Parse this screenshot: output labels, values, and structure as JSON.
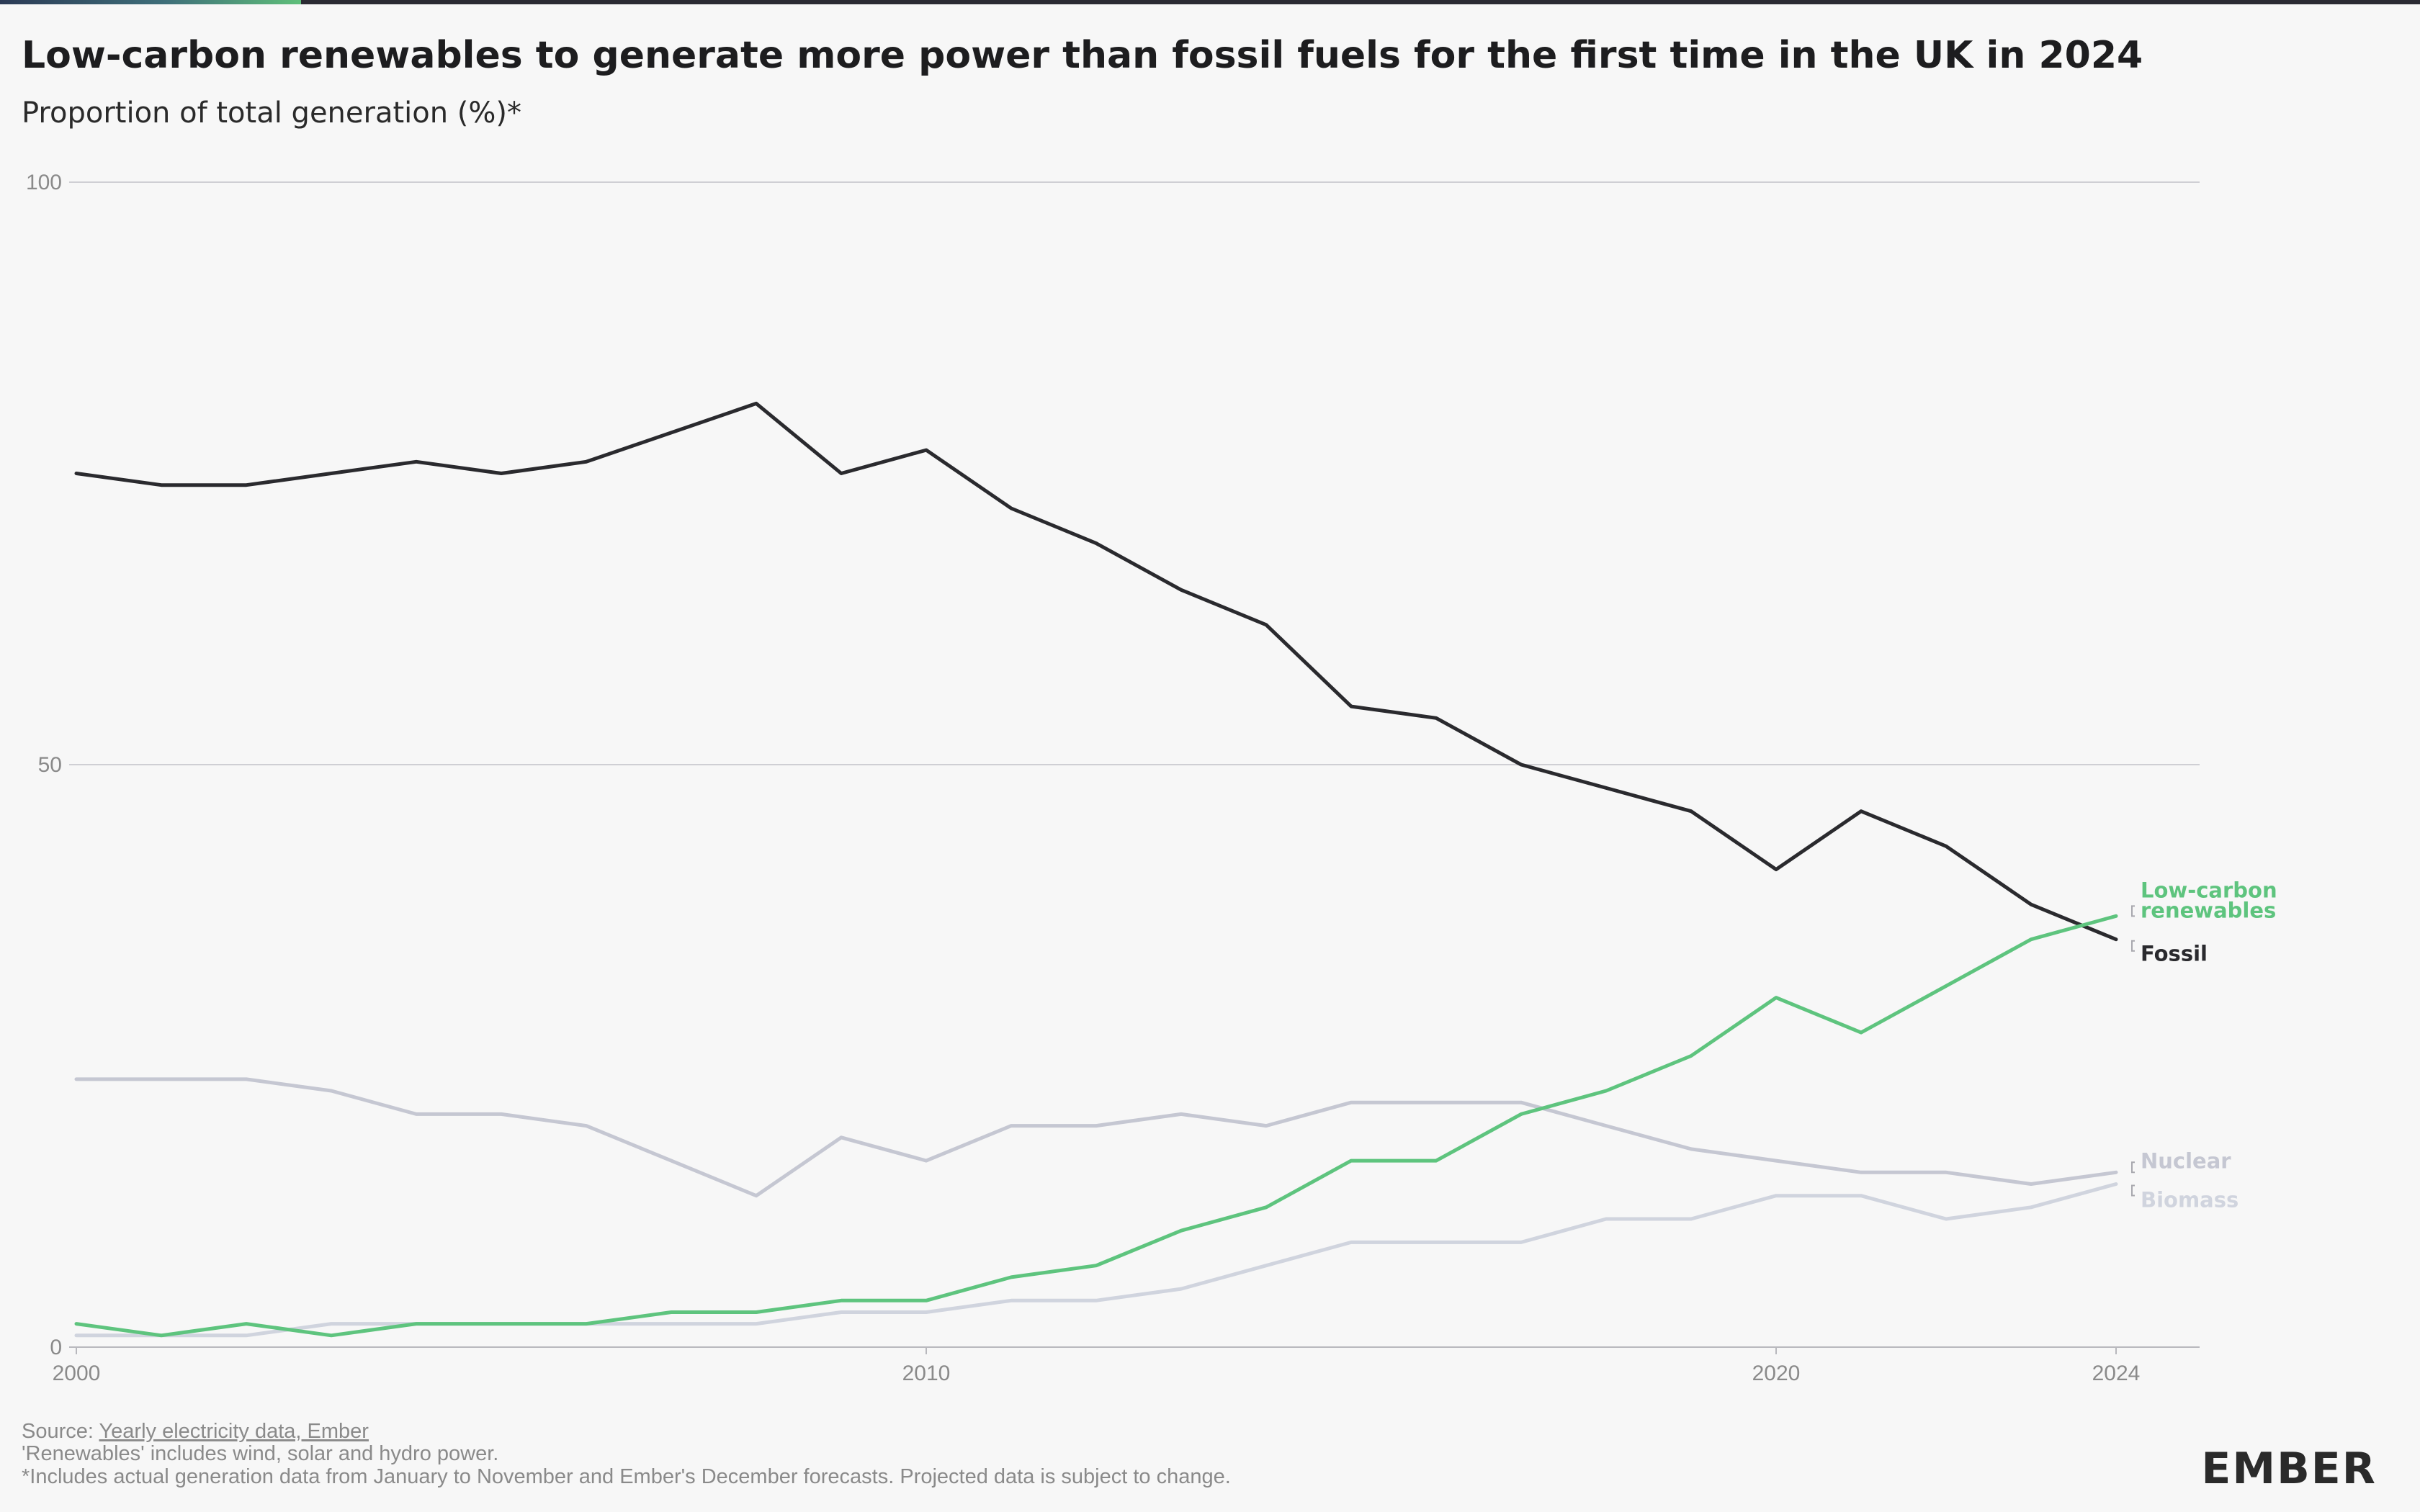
{
  "header": {
    "title": "Low-carbon renewables to generate more power than fossil fuels for the first time in the UK in 2024",
    "subtitle": "Proportion of total generation (%)*"
  },
  "footer": {
    "source_prefix": "Source: ",
    "source_link": "Yearly electricity data, Ember",
    "note1": "'Renewables' includes wind, solar and hydro power.",
    "note2": "*Includes actual generation data from January to November and Ember's December forecasts. Projected data is subject to change."
  },
  "logo": {
    "text": "EMBER"
  },
  "colors": {
    "fossil": "#2a2a2e",
    "renewables": "#5ec47e",
    "nuclear": "#c5c7d2",
    "biomass": "#d0d4de",
    "grid": "#cfcfd4",
    "axis": "#b8b8bd"
  },
  "chart_data": {
    "type": "line",
    "title": "Low-carbon renewables to generate more power than fossil fuels for the first time in the UK in 2024",
    "subtitle": "Proportion of total generation (%)*",
    "xlabel": "",
    "ylabel": "",
    "xlim": [
      2000,
      2025
    ],
    "ylim": [
      0,
      100
    ],
    "x_ticks": [
      2000,
      2010,
      2020,
      2024
    ],
    "y_ticks": [
      0,
      50,
      100
    ],
    "grid": true,
    "x": [
      2000,
      2001,
      2002,
      2003,
      2004,
      2005,
      2006,
      2007,
      2008,
      2009,
      2010,
      2011,
      2012,
      2013,
      2014,
      2015,
      2016,
      2017,
      2018,
      2019,
      2020,
      2021,
      2022,
      2023,
      2024
    ],
    "series": [
      {
        "name": "Fossil",
        "label_lines": [
          "Fossil"
        ],
        "color_key": "fossil",
        "values": [
          75,
          74,
          74,
          75,
          76,
          75,
          76,
          78.5,
          81,
          75,
          77,
          72,
          69,
          65,
          62,
          55,
          54,
          50,
          48,
          46,
          41,
          46,
          43,
          38,
          35
        ]
      },
      {
        "name": "Low-carbon renewables",
        "label_lines": [
          "Low-carbon",
          "renewables"
        ],
        "color_key": "renewables",
        "values": [
          2,
          1,
          2,
          1,
          2,
          2,
          2,
          3,
          3,
          4,
          4,
          6,
          7,
          10,
          12,
          16,
          16,
          20,
          22,
          25,
          30,
          27,
          31,
          35,
          37
        ]
      },
      {
        "name": "Nuclear",
        "label_lines": [
          "Nuclear"
        ],
        "color_key": "nuclear",
        "values": [
          23,
          23,
          23,
          22,
          20,
          20,
          19,
          16,
          13,
          18,
          16,
          19,
          19,
          20,
          19,
          21,
          21,
          21,
          19,
          17,
          16,
          15,
          15,
          14,
          15
        ]
      },
      {
        "name": "Biomass",
        "label_lines": [
          "Biomass"
        ],
        "color_key": "biomass",
        "values": [
          1,
          1,
          1,
          2,
          2,
          2,
          2,
          2,
          2,
          3,
          3,
          4,
          4,
          5,
          7,
          9,
          9,
          9,
          11,
          11,
          13,
          13,
          11,
          12,
          14
        ]
      }
    ],
    "legend": "inline-right"
  }
}
